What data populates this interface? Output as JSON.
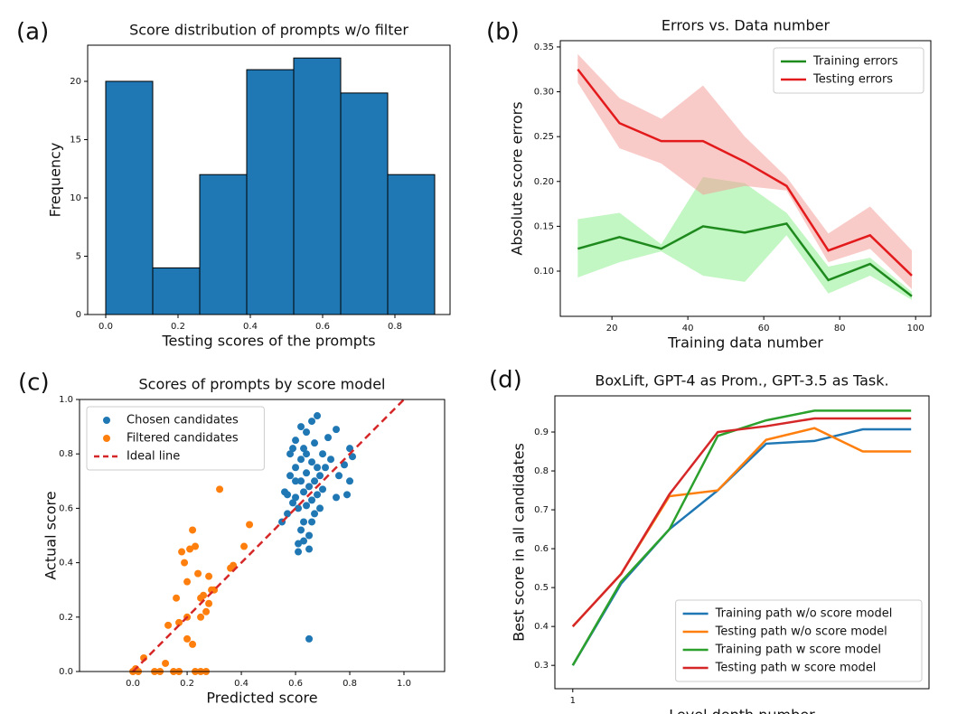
{
  "chart_data": [
    {
      "type": "histogram",
      "panel_label": "(a)",
      "title": "Score distribution of prompts w/o filter",
      "x_label": "Testing scores of the prompts",
      "y_label": "Frequency",
      "bins": [
        0,
        0.13,
        0.26,
        0.39,
        0.52,
        0.65,
        0.78,
        0.91
      ],
      "values": [
        20,
        4,
        12,
        21,
        22,
        19,
        12
      ],
      "color": "#1f77b4",
      "edge_color": "#000000",
      "xlim": [
        -0.05,
        0.9525
      ],
      "ylim": [
        0,
        23.1
      ],
      "xticks": [
        {
          "value": 0,
          "label": "0.0"
        },
        0.2,
        0.4,
        0.6,
        0.8
      ],
      "yticks": [
        0,
        5,
        10,
        15,
        20
      ]
    },
    {
      "type": "line",
      "panel_label": "(b)",
      "title": "Errors vs. Data number",
      "x_label": "Training data number",
      "y_label": "Absolute score errors",
      "x": [
        11,
        22,
        33,
        44,
        55,
        66,
        77,
        88,
        99
      ],
      "series": [
        {
          "name": "Training errors",
          "color": "#1e8a1e",
          "band_color": "#90ee90",
          "values": [
            0.125,
            0.138,
            0.125,
            0.15,
            0.143,
            0.153,
            0.09,
            0.108,
            0.072
          ],
          "lower": [
            0.093,
            0.11,
            0.122,
            0.095,
            0.088,
            0.14,
            0.075,
            0.095,
            0.068
          ],
          "upper": [
            0.158,
            0.165,
            0.13,
            0.205,
            0.198,
            0.165,
            0.105,
            0.115,
            0.077
          ]
        },
        {
          "name": "Testing errors",
          "color": "#e31a1c",
          "band_color": "#f4a19a",
          "values": [
            0.325,
            0.265,
            0.245,
            0.245,
            0.222,
            0.195,
            0.123,
            0.14,
            0.095
          ],
          "lower": [
            0.31,
            0.237,
            0.22,
            0.185,
            0.195,
            0.19,
            0.11,
            0.125,
            0.08
          ],
          "upper": [
            0.342,
            0.293,
            0.27,
            0.307,
            0.25,
            0.205,
            0.142,
            0.172,
            0.123
          ]
        }
      ],
      "legend": "upper right",
      "xlim": [
        6.4,
        104
      ],
      "ylim": [
        0.0496,
        0.357
      ],
      "xticks": [
        20,
        40,
        60,
        80,
        100
      ],
      "yticks": [
        {
          "value": 0.1,
          "label": "0.10"
        },
        0.15,
        {
          "value": 0.2,
          "label": "0.20"
        },
        0.25,
        {
          "value": 0.3,
          "label": "0.30"
        },
        0.35
      ]
    },
    {
      "type": "scatter",
      "panel_label": "(c)",
      "title": "Scores of prompts by score model",
      "x_label": "Predicted score",
      "y_label": "Actual score",
      "series": [
        {
          "name": "Chosen candidates",
          "color": "#1f77b4",
          "x": [
            0.55,
            0.57,
            0.58,
            0.58,
            0.59,
            0.6,
            0.6,
            0.6,
            0.61,
            0.61,
            0.62,
            0.62,
            0.62,
            0.63,
            0.63,
            0.63,
            0.64,
            0.64,
            0.64,
            0.65,
            0.65,
            0.65,
            0.66,
            0.66,
            0.66,
            0.67,
            0.67,
            0.67,
            0.68,
            0.68,
            0.69,
            0.69,
            0.7,
            0.7,
            0.71,
            0.72,
            0.73,
            0.75,
            0.75,
            0.76,
            0.78,
            0.79,
            0.8,
            0.8,
            0.81,
            0.61,
            0.62,
            0.56,
            0.59,
            0.64,
            0.66,
            0.68,
            0.6,
            0.57,
            0.65,
            0.63
          ],
          "values": [
            0.55,
            0.58,
            0.72,
            0.8,
            0.82,
            0.64,
            0.75,
            0.85,
            0.6,
            0.47,
            0.7,
            0.9,
            0.78,
            0.66,
            0.55,
            0.82,
            0.61,
            0.73,
            0.88,
            0.68,
            0.5,
            0.12,
            0.63,
            0.77,
            0.92,
            0.58,
            0.7,
            0.84,
            0.65,
            0.94,
            0.72,
            0.6,
            0.8,
            0.67,
            0.75,
            0.86,
            0.78,
            0.64,
            0.89,
            0.72,
            0.76,
            0.65,
            0.7,
            0.82,
            0.79,
            0.44,
            0.52,
            0.66,
            0.62,
            0.8,
            0.55,
            0.75,
            0.7,
            0.65,
            0.45,
            0.48
          ]
        },
        {
          "name": "Filtered candidates",
          "color": "#ff7f0e",
          "x": [
            0,
            0.01,
            0.02,
            0.04,
            0.08,
            0.1,
            0.12,
            0.13,
            0.16,
            0.17,
            0.18,
            0.19,
            0.2,
            0.2,
            0.21,
            0.22,
            0.23,
            0.22,
            0.23,
            0.24,
            0.25,
            0.25,
            0.26,
            0.27,
            0.27,
            0.28,
            0.29,
            0.3,
            0.32,
            0.36,
            0.37,
            0.41,
            0.43,
            0.2,
            0.17,
            0.25,
            0.28,
            0.15
          ],
          "values": [
            0,
            0.01,
            0,
            0.05,
            0,
            0,
            0.03,
            0.17,
            0.27,
            0.18,
            0.44,
            0.4,
            0.33,
            0.2,
            0.45,
            0.52,
            0.46,
            0.1,
            0,
            0.36,
            0.27,
            0.2,
            0.28,
            0.22,
            0,
            0.35,
            0.3,
            0.3,
            0.67,
            0.38,
            0.39,
            0.46,
            0.54,
            0.12,
            0,
            0,
            0.25,
            0
          ]
        },
        {
          "name": "Ideal line",
          "color": "#d62728",
          "kind": "line",
          "style": "dashed",
          "x": [
            0,
            1
          ],
          "values": [
            0,
            1
          ]
        }
      ],
      "legend": "upper left",
      "xlim": [
        -0.197,
        1.15
      ],
      "ylim": [
        0,
        1
      ],
      "xticks": [
        {
          "value": 0,
          "label": "0.0"
        },
        0.2,
        0.4,
        0.6,
        0.8,
        {
          "value": 1,
          "label": "1.0"
        }
      ],
      "yticks": [
        {
          "value": 0,
          "label": "0.0"
        },
        0.2,
        0.4,
        0.6,
        0.8,
        {
          "value": 1,
          "label": "1.0"
        }
      ]
    },
    {
      "type": "line",
      "panel_label": "(d)",
      "title": "BoxLift, GPT-4 as Prom., GPT-3.5 as Task.",
      "x_label": "Level depth number",
      "y_label": "Best score in all candidates",
      "x": [
        1,
        2,
        3,
        4,
        5,
        6,
        7,
        8
      ],
      "series": [
        {
          "name": "Training path w/o score model",
          "color": "#1f77b4",
          "values": [
            0.3,
            0.51,
            0.65,
            0.75,
            0.87,
            0.877,
            0.907,
            0.907
          ]
        },
        {
          "name": "Testing path w/o score model",
          "color": "#ff7f0e",
          "values": [
            0.4,
            0.535,
            0.735,
            0.75,
            0.88,
            0.91,
            0.85,
            0.85
          ]
        },
        {
          "name": "Training path w score model",
          "color": "#2ca02c",
          "values": [
            0.3,
            0.515,
            0.65,
            0.89,
            0.93,
            0.955,
            0.955,
            0.955
          ]
        },
        {
          "name": "Testing path w score model",
          "color": "#d62728",
          "values": [
            0.4,
            0.535,
            0.74,
            0.9,
            0.915,
            0.935,
            0.935,
            0.935
          ]
        }
      ],
      "legend": "lower right",
      "xlim": [
        0.63,
        8.37
      ],
      "ylim": [
        0.24,
        0.993
      ],
      "xticks": [
        1
      ],
      "yticks": [
        0.3,
        0.4,
        0.5,
        0.6,
        0.7,
        0.8,
        0.9
      ]
    }
  ]
}
